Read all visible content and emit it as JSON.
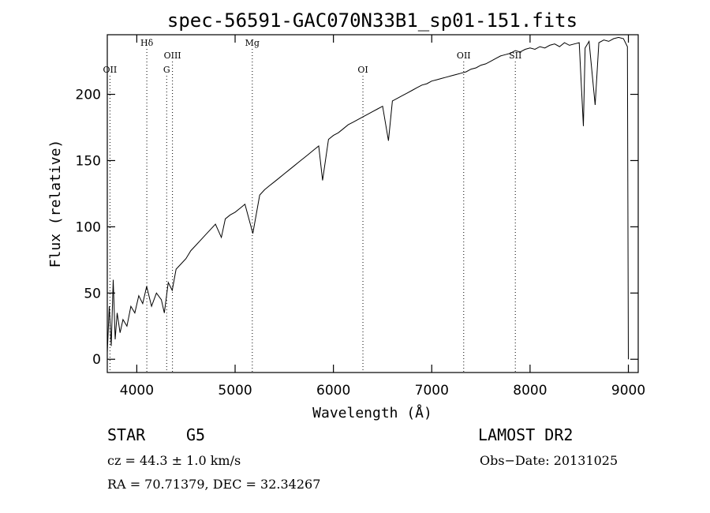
{
  "chart_data": {
    "type": "line",
    "title": "spec-56591-GAC070N33B1_sp01-151.fits",
    "xlabel": "Wavelength (Å)",
    "ylabel": "Flux (relative)",
    "xlim": [
      3700,
      9100
    ],
    "ylim": [
      -10,
      245
    ],
    "x_ticks": [
      4000,
      5000,
      6000,
      7000,
      8000,
      9000
    ],
    "y_ticks": [
      0,
      50,
      100,
      150,
      200
    ],
    "grid": false,
    "series": [
      {
        "x": [
          3700,
          3720,
          3740,
          3760,
          3780,
          3800,
          3830,
          3860,
          3900,
          3940,
          3980,
          4020,
          4060,
          4100,
          4150,
          4200,
          4250,
          4280,
          4320,
          4360,
          4400,
          4450,
          4500,
          4550,
          4600,
          4650,
          4700,
          4750,
          4800,
          4860,
          4900,
          4950,
          5000,
          5050,
          5100,
          5180,
          5250,
          5300,
          5350,
          5400,
          5450,
          5500,
          5550,
          5600,
          5650,
          5700,
          5750,
          5800,
          5850,
          5890,
          5950,
          6000,
          6050,
          6100,
          6150,
          6200,
          6250,
          6300,
          6350,
          6400,
          6450,
          6500,
          6560,
          6600,
          6650,
          6700,
          6750,
          6800,
          6850,
          6900,
          6950,
          7000,
          7050,
          7100,
          7150,
          7200,
          7250,
          7300,
          7350,
          7400,
          7450,
          7500,
          7550,
          7600,
          7650,
          7700,
          7750,
          7800,
          7850,
          7900,
          7950,
          8000,
          8050,
          8100,
          8150,
          8200,
          8250,
          8300,
          8350,
          8400,
          8450,
          8500,
          8542,
          8560,
          8600,
          8662,
          8700,
          8750,
          8800,
          8850,
          8900,
          8950,
          8990,
          9000
        ],
        "y": [
          5,
          40,
          10,
          60,
          15,
          35,
          20,
          30,
          25,
          40,
          35,
          48,
          42,
          55,
          40,
          50,
          45,
          35,
          58,
          52,
          68,
          72,
          76,
          82,
          86,
          90,
          94,
          98,
          102,
          92,
          106,
          109,
          111,
          114,
          117,
          95,
          124,
          128,
          131,
          134,
          137,
          140,
          143,
          146,
          149,
          152,
          155,
          158,
          161,
          135,
          166,
          169,
          171,
          174,
          177,
          179,
          181,
          183,
          185,
          187,
          189,
          191,
          165,
          195,
          197,
          199,
          201,
          203,
          205,
          207,
          208,
          210,
          211,
          212,
          213,
          214,
          215,
          216,
          217,
          219,
          220,
          222,
          223,
          225,
          227,
          229,
          230,
          231,
          233,
          232,
          234,
          235,
          234,
          236,
          235,
          237,
          238,
          236,
          239,
          237,
          238,
          239,
          176,
          235,
          240,
          192,
          239,
          241,
          240,
          242,
          243,
          242,
          236,
          0
        ]
      }
    ],
    "line_markers": [
      {
        "label": "OII",
        "x": 3727
      },
      {
        "label": "Hδ",
        "x": 4102
      },
      {
        "label": "G",
        "x": 4304
      },
      {
        "label": "OIII",
        "x": 4363
      },
      {
        "label": "Mg",
        "x": 5175
      },
      {
        "label": "OI",
        "x": 6300
      },
      {
        "label": "OII",
        "x": 7325
      },
      {
        "label": "SII",
        "x": 7850
      }
    ]
  },
  "footer": {
    "object_type": "STAR",
    "subclass": "G5",
    "survey": "LAMOST DR2",
    "cz": "cz = 44.3 ± 1.0 km/s",
    "obs_date": "Obs−Date: 20131025",
    "coords": "RA =  70.71379, DEC =  32.34267"
  }
}
